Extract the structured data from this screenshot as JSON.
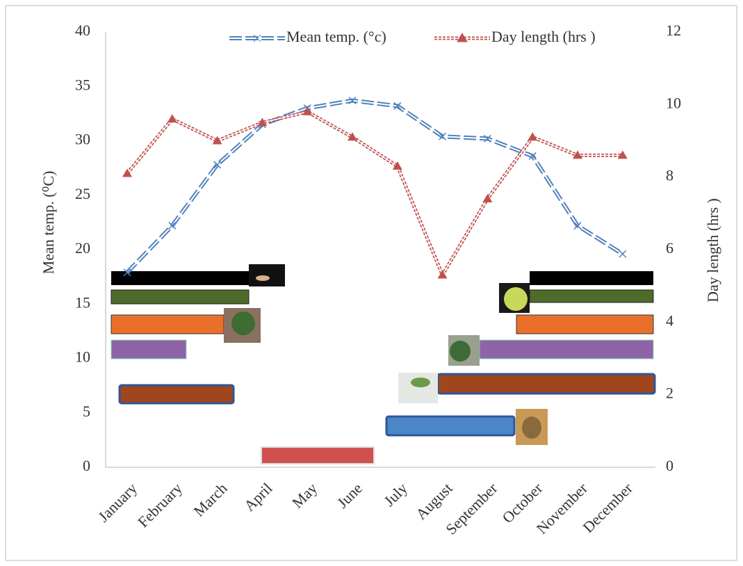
{
  "chart_data": {
    "type": "line",
    "categories": [
      "January",
      "February",
      "March",
      "April",
      "May",
      "June",
      "July",
      "August",
      "September",
      "October",
      "November",
      "December"
    ],
    "series": [
      {
        "name": "Mean temp. (°c)",
        "color": "#4f81bd",
        "marker": "x",
        "values": [
          17.9,
          22.2,
          27.8,
          31.5,
          33.0,
          33.7,
          33.2,
          30.4,
          30.2,
          28.6,
          22.2,
          19.6
        ]
      },
      {
        "name": "Day length (hrs )",
        "color": "#c0504d",
        "marker": "triangle",
        "axis": "y2",
        "values": [
          8.1,
          9.6,
          9.0,
          9.5,
          9.8,
          9.1,
          8.3,
          5.3,
          7.4,
          9.1,
          8.6,
          8.6
        ]
      }
    ],
    "ylabel": "Mean  temp. (⁰C)",
    "y2label": "Day  length (hrs )",
    "ylim": [
      0,
      40
    ],
    "yticks": [
      0,
      5,
      10,
      15,
      20,
      25,
      30,
      35,
      40
    ],
    "y2lim": [
      0,
      12
    ],
    "y2ticks": [
      0,
      2,
      4,
      6,
      8,
      10,
      12
    ],
    "grid": false,
    "legend": "top"
  }
}
